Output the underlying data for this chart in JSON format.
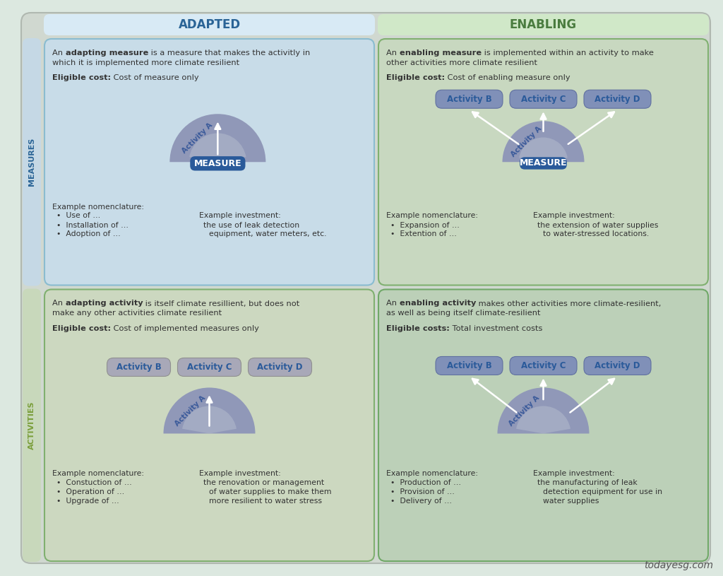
{
  "bg_color": "#dce8e0",
  "col1_header": "ADAPTED",
  "col2_header": "ENABLING",
  "row1_label": "MEASURES",
  "row2_label": "ACTIVITIES",
  "col1_header_color": "#2a6496",
  "col2_header_color": "#4a7c3f",
  "row_label_color_1": "#2a6496",
  "row_label_color_2": "#7a9e3a",
  "cell_tl_bg": "#c8dce8",
  "cell_tr_bg": "#c8d8c0",
  "cell_bl_bg": "#ccd8c0",
  "cell_br_bg": "#bcd0b8",
  "header_bg_1": "#d8eaf5",
  "header_bg_2": "#d0e8c8",
  "measure_box_color": "#2a5a9a",
  "pill_color_measures": "#8090b8",
  "pill_color_activities_bl": "#a8a8b8",
  "pill_color_activities_br": "#8090b8",
  "sc_outer_color": "#9098b8",
  "sc_inner_color": "#b0b8cc",
  "activity_a_color": "#3a5a9a",
  "text_dark": "#333333",
  "text_mid": "#555555",
  "watermark": "todayesg.com",
  "cell_tl": {
    "desc_plain1": "An ",
    "desc_bold": "adapting measure",
    "desc_plain2": " is a measure that makes the activitly in",
    "desc_line2": "which it is implemented more climate resilient",
    "elig_bold": "Eligible cost:",
    "elig_plain": " Cost of measure only",
    "nom_title": "Example nomenclature:",
    "nom_items": [
      "Use of …",
      "Installation of …",
      "Adoption of …"
    ],
    "inv_title": "Example investment:",
    "inv_items": [
      "the use of leak detection",
      "equipment, water meters, etc."
    ]
  },
  "cell_tr": {
    "desc_plain1": "An ",
    "desc_bold": "enabling measure",
    "desc_plain2": " is implemented within an activity to make",
    "desc_line2": "other activities more climate resilient",
    "elig_bold": "Eligible cost:",
    "elig_plain": " Cost of enabling measure only",
    "nom_title": "Example nomenclature:",
    "nom_items": [
      "Expansion of …",
      "Extention of …"
    ],
    "inv_title": "Example investment:",
    "inv_items": [
      "the extension of water supplies",
      "to water-stressed locations."
    ]
  },
  "cell_bl": {
    "desc_plain1": "An ",
    "desc_bold": "adapting activity",
    "desc_plain2": " is itself climate resillient, but does not",
    "desc_line2": "make any other activities climate resilient",
    "elig_bold": "Eligible cost:",
    "elig_plain": " Cost of implemented measures only",
    "nom_title": "Example nomenclature:",
    "nom_items": [
      "Constuction of …",
      "Operation of …",
      "Upgrade of …"
    ],
    "inv_title": "Example investment:",
    "inv_items": [
      "the renovation or management",
      "of water supplies to make them",
      "more resilient to water stress"
    ]
  },
  "cell_br": {
    "desc_plain1": "An ",
    "desc_bold": "enabling activity",
    "desc_plain2": " makes other activities more climate-resilient,",
    "desc_line2": "as well as being itself climate-resilient",
    "elig_bold": "Eligible costs:",
    "elig_plain": " Total investment costs",
    "nom_title": "Example nomenclature:",
    "nom_items": [
      "Production of …",
      "Provision of …",
      "Delivery of …"
    ],
    "inv_title": "Example investment:",
    "inv_items": [
      "the manufacturing of leak",
      "detection equipment for use in",
      "water supplies"
    ]
  }
}
